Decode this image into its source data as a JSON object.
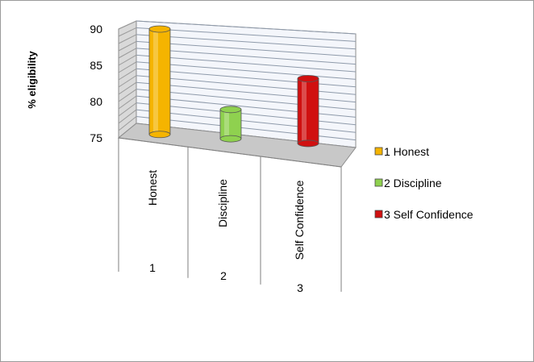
{
  "chart_data": {
    "type": "bar",
    "style": "3d-cylinder",
    "ylabel": "% eligibility",
    "ylim": [
      75,
      90
    ],
    "yticks": [
      75,
      80,
      85,
      90
    ],
    "categories": [
      "Honest",
      "Discipline",
      "Self Confidence"
    ],
    "category_numbers": [
      "1",
      "2",
      "3"
    ],
    "values": [
      90,
      79,
      83.5
    ],
    "legend_position": "right",
    "grid": true,
    "series": [
      {
        "name": "1 Honest",
        "value": 90,
        "color": "#f5b400"
      },
      {
        "name": "2 Discipline",
        "value": 79,
        "color": "#8fd14f"
      },
      {
        "name": "3 Self Confidence",
        "value": 83.5,
        "color": "#d01010"
      }
    ]
  }
}
